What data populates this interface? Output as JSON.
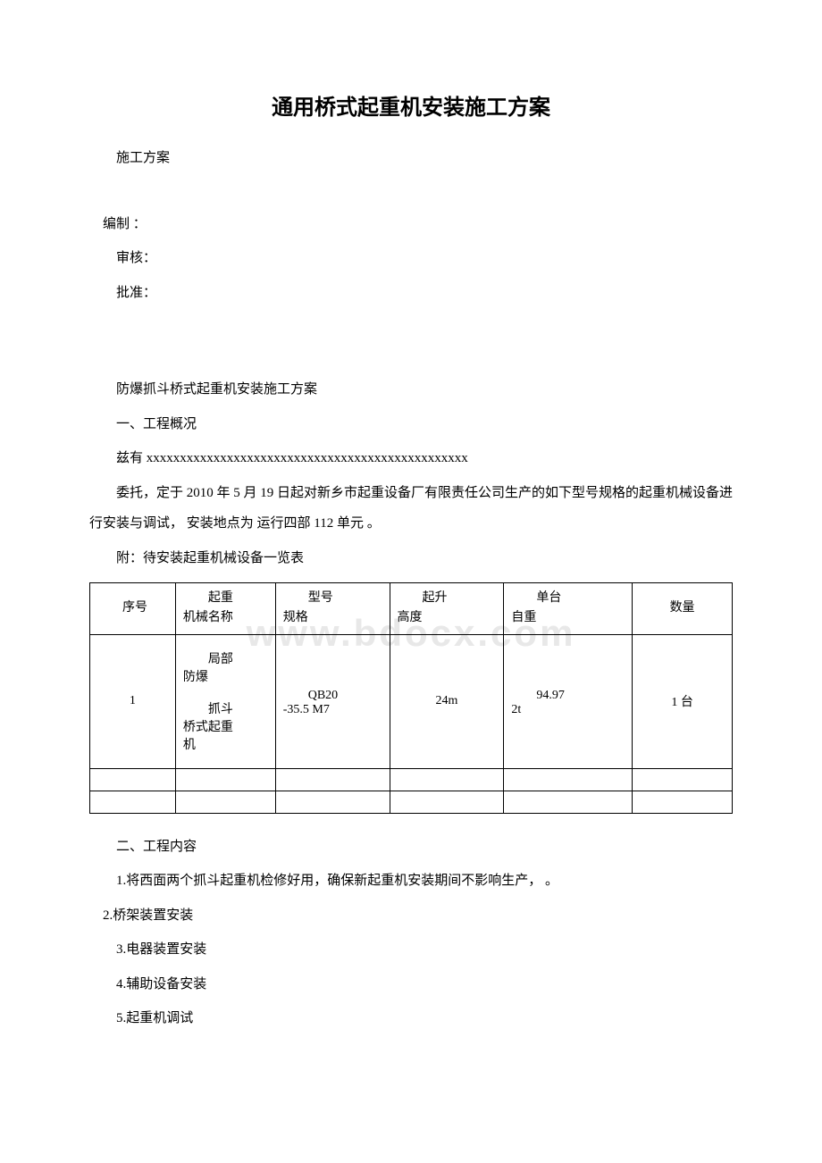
{
  "document": {
    "title": "通用桥式起重机安装施工方案",
    "p1": "施工方案",
    "p2": " 编制 ：",
    "p3": "审核：",
    "p4": "批准：",
    "p5": "防爆抓斗桥式起重机安装施工方案",
    "p6": "一、工程概况",
    "p7": "兹有 xxxxxxxxxxxxxxxxxxxxxxxxxxxxxxxxxxxxxxxxxxxxxxxx",
    "p8": "委托，定于 2010 年 5 月 19 日起对新乡市起重设备厂有限责任公司生产的如下型号规格的起重机械设备进行安装与调试， 安装地点为 运行四部 112 单元 。",
    "p9": "附：待安装起重机械设备一览表",
    "p10": "二、工程内容",
    "p11": "1.将西面两个抓斗起重机检修好用，确保新起重机安装期间不影响生产， 。",
    "p12": " 2.桥架装置安装",
    "p13": "3.电器装置安装",
    "p14": "4.辅助设备安装",
    "p15": "5.起重机调试"
  },
  "watermark": "www.bdocx.com",
  "table": {
    "headers": {
      "h1_line1": "　　序号",
      "h2_line1": "　　起重",
      "h2_line2": "机械名称",
      "h3_line1": "　　型号",
      "h3_line2": "规格",
      "h4_line1": "　　起升",
      "h4_line2": "高度",
      "h5_line1": "　　单台",
      "h5_line2": "自重",
      "h6_line1": "数量"
    },
    "row1": {
      "c1": "1",
      "c2_line1": "　　局部",
      "c2_line2": "防爆",
      "c2_line3": "　　抓斗",
      "c2_line4": "桥式起重",
      "c2_line5": "机",
      "c3_line1": "　　QB20",
      "c3_line2": "-35.5 M7",
      "c4": "24m",
      "c5_line1": "　　94.97",
      "c5_line2": "2t",
      "c6": "1 台"
    }
  },
  "styles": {
    "background_color": "#ffffff",
    "text_color": "#000000",
    "watermark_color": "#e8e8e8",
    "border_color": "#000000",
    "title_fontsize": 24,
    "body_fontsize": 15,
    "table_fontsize": 14,
    "watermark_fontsize": 42
  }
}
